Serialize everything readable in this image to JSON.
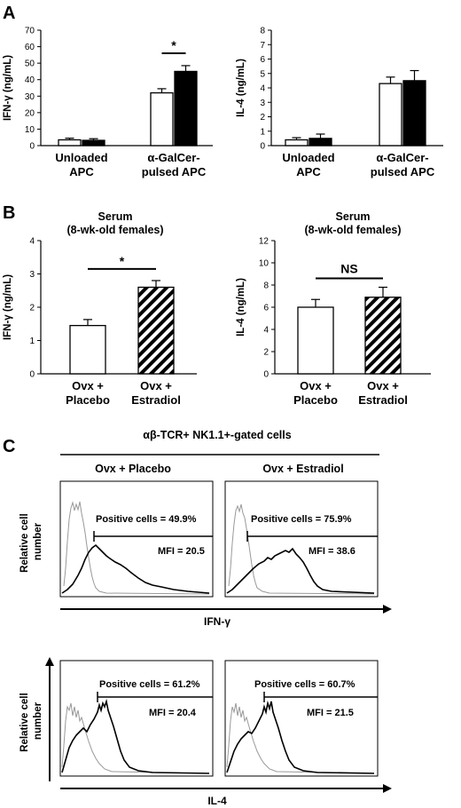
{
  "panel_labels": [
    "A",
    "B",
    "C"
  ],
  "chart_data": [
    {
      "id": "a1",
      "panel": "A",
      "type": "bar",
      "ylabel": "IFN-γ (ng/mL)",
      "ylim": [
        0,
        70
      ],
      "yticks": [
        0,
        10,
        20,
        30,
        40,
        50,
        60,
        70
      ],
      "groups": [
        {
          "lines": [
            "Unloaded",
            "APC"
          ]
        },
        {
          "lines": [
            "α-GalCer-",
            "pulsed APC"
          ]
        }
      ],
      "series": [
        {
          "fill": "#ffffff",
          "values": [
            3.5,
            32
          ],
          "errors": [
            1,
            2.5
          ]
        },
        {
          "fill": "#000000",
          "values": [
            3.2,
            45
          ],
          "errors": [
            1,
            3.5
          ]
        }
      ],
      "significance": [
        {
          "label": "*",
          "group": 1,
          "y": 56
        }
      ]
    },
    {
      "id": "a2",
      "panel": "A",
      "type": "bar",
      "ylabel": "IL-4 (ng/mL)",
      "ylim": [
        0,
        8
      ],
      "yticks": [
        0,
        1,
        2,
        3,
        4,
        5,
        6,
        7,
        8
      ],
      "groups": [
        {
          "lines": [
            "Unloaded",
            "APC"
          ]
        },
        {
          "lines": [
            "α-GalCer-",
            "pulsed APC"
          ]
        }
      ],
      "series": [
        {
          "fill": "#ffffff",
          "values": [
            0.4,
            4.3
          ],
          "errors": [
            0.15,
            0.45
          ]
        },
        {
          "fill": "#000000",
          "values": [
            0.5,
            4.5
          ],
          "errors": [
            0.3,
            0.7
          ]
        }
      ],
      "significance": []
    },
    {
      "id": "b1",
      "panel": "B",
      "type": "bar",
      "title": [
        "Serum",
        "(8-wk-old females)"
      ],
      "ylabel": "IFN-γ (ng/mL)",
      "ylim": [
        0,
        4
      ],
      "yticks": [
        0,
        1,
        2,
        3,
        4
      ],
      "groups": [
        {
          "lines": [
            "Ovx +",
            "Placebo"
          ]
        },
        {
          "lines": [
            "Ovx +",
            "Estradiol"
          ]
        }
      ],
      "series": [
        {
          "fills": [
            "white",
            "hatch"
          ],
          "values": [
            1.45,
            2.6
          ],
          "errors": [
            0.18,
            0.2
          ]
        }
      ],
      "significance": [
        {
          "label": "*",
          "y": 3.15
        }
      ]
    },
    {
      "id": "b2",
      "panel": "B",
      "type": "bar",
      "title": [
        "Serum",
        "(8-wk-old females)"
      ],
      "ylabel": "IL-4 (ng/mL)",
      "ylim": [
        0,
        12
      ],
      "yticks": [
        0,
        2,
        4,
        6,
        8,
        10,
        12
      ],
      "groups": [
        {
          "lines": [
            "Ovx +",
            "Placebo"
          ]
        },
        {
          "lines": [
            "Ovx +",
            "Estradiol"
          ]
        }
      ],
      "series": [
        {
          "fills": [
            "white",
            "hatch"
          ],
          "values": [
            6.0,
            6.9
          ],
          "errors": [
            0.7,
            0.9
          ]
        }
      ],
      "significance": [
        {
          "label": "NS",
          "y": 8.6
        }
      ]
    }
  ],
  "panel_c": {
    "header": "αβ-TCR+ NK1.1+-gated cells",
    "columns": [
      "Ovx + Placebo",
      "Ovx + Estradiol"
    ],
    "ylabel_lines": [
      "Relative cell",
      "number"
    ],
    "rows": [
      {
        "axis_label": "IFN-γ",
        "cells": [
          {
            "positive": "Positive cells = 49.9%",
            "mfi": "MFI = 20.5"
          },
          {
            "positive": "Positive cells = 75.9%",
            "mfi": "MFI = 38.6"
          }
        ]
      },
      {
        "axis_label": "IL-4",
        "cells": [
          {
            "positive": "Positive cells = 61.2%",
            "mfi": "MFI = 20.4"
          },
          {
            "positive": "Positive cells = 60.7%",
            "mfi": "MFI = 21.5"
          }
        ]
      }
    ]
  }
}
